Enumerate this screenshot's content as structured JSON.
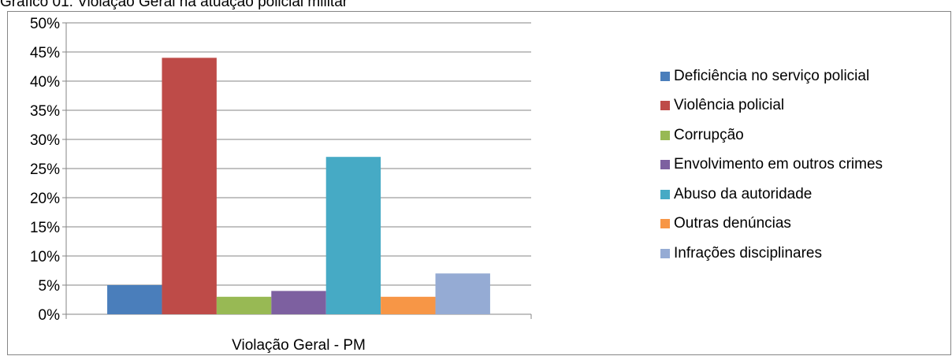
{
  "caption": "Gráfico 01: Violação Geral na atuação policial militar",
  "chart_data": {
    "type": "bar",
    "title": "Gráfico 01: Violação Geral na atuação policial militar",
    "categories": [
      "Violação Geral - PM"
    ],
    "ylim": [
      0,
      50
    ],
    "yticks": [
      "0%",
      "5%",
      "10%",
      "15%",
      "20%",
      "25%",
      "30%",
      "35%",
      "40%",
      "45%",
      "50%"
    ],
    "grid": true,
    "legend_position": "right",
    "series": [
      {
        "name": "Deficiência no serviço policial",
        "values": [
          5
        ],
        "color": "#4a7ebb"
      },
      {
        "name": "Violência policial",
        "values": [
          44
        ],
        "color": "#be4b48"
      },
      {
        "name": "Corrupção",
        "values": [
          3
        ],
        "color": "#98b954"
      },
      {
        "name": "Envolvimento em outros crimes",
        "values": [
          4
        ],
        "color": "#7d60a0"
      },
      {
        "name": "Abuso da autoridade",
        "values": [
          27
        ],
        "color": "#46aac5"
      },
      {
        "name": "Outras denúncias",
        "values": [
          3
        ],
        "color": "#f79646"
      },
      {
        "name": "Infrações disciplinares",
        "values": [
          7
        ],
        "color": "#95abd4"
      }
    ]
  }
}
